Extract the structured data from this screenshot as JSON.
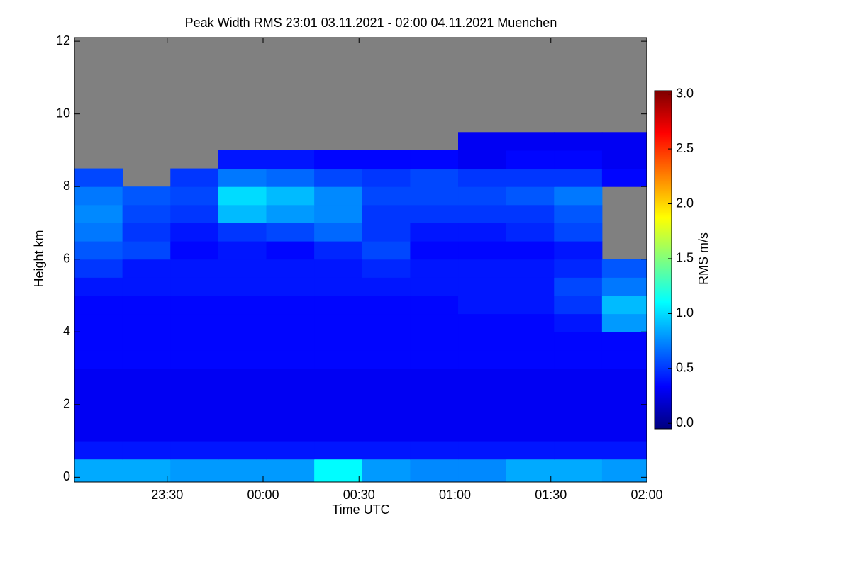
{
  "chart_data": {
    "type": "heatmap",
    "title": "Peak Width RMS   23:01 03.11.2021 - 02:00 04.11.2021 Muenchen",
    "x_label": "Time UTC",
    "y_label": "Height km",
    "colorbar_label": "RMS m/s",
    "xlim": [
      "23:01",
      "02:00"
    ],
    "xticks": [
      "23:30",
      "00:00",
      "00:30",
      "01:00",
      "01:30",
      "02:00"
    ],
    "ylim": [
      -0.13,
      12.1
    ],
    "yticks": [
      0,
      2,
      4,
      6,
      8,
      10,
      12
    ],
    "zlim": [
      -0.05,
      3.03
    ],
    "zticks": [
      {
        "value": 0,
        "label": "0.0"
      },
      0.5,
      {
        "value": 1,
        "label": "1.0"
      },
      1.5,
      {
        "value": 2,
        "label": "2.0"
      },
      2.5,
      {
        "value": 3,
        "label": "3.0"
      }
    ],
    "colors": [
      "#00007f",
      "#0000ff",
      "#007fff",
      "#00ffff",
      "#7fff7f",
      "#ffff00",
      "#ff7f00",
      "#ff0000",
      "#7f0000"
    ],
    "missing_color": "#808080",
    "x_bins": [
      "23:01",
      "23:16",
      "23:31",
      "23:46",
      "00:01",
      "00:16",
      "00:31",
      "00:46",
      "01:01",
      "01:16",
      "01:31",
      "01:46",
      "02:00"
    ],
    "y_bins": [
      0,
      0.5,
      1,
      1.5,
      2,
      2.5,
      3,
      3.5,
      4,
      4.5,
      5,
      5.5,
      6,
      6.5,
      7,
      7.5,
      8,
      8.5,
      9,
      9.5,
      10,
      10.5,
      11,
      11.5,
      12
    ],
    "z": [
      [
        0.85,
        0.85,
        0.8,
        0.8,
        0.8,
        1.1,
        0.8,
        0.75,
        0.75,
        0.85,
        0.85,
        0.8
      ],
      [
        0.4,
        0.4,
        0.4,
        0.4,
        0.4,
        0.4,
        0.4,
        0.4,
        0.4,
        0.4,
        0.4,
        0.4
      ],
      [
        0.3,
        0.3,
        0.3,
        0.3,
        0.3,
        0.3,
        0.3,
        0.3,
        0.3,
        0.3,
        0.3,
        0.3
      ],
      [
        0.3,
        0.3,
        0.3,
        0.3,
        0.3,
        0.3,
        0.3,
        0.3,
        0.3,
        0.3,
        0.3,
        0.3
      ],
      [
        0.3,
        0.3,
        0.3,
        0.3,
        0.3,
        0.3,
        0.3,
        0.3,
        0.3,
        0.3,
        0.3,
        0.3
      ],
      [
        0.3,
        0.3,
        0.3,
        0.3,
        0.3,
        0.3,
        0.3,
        0.3,
        0.3,
        0.3,
        0.3,
        0.3
      ],
      [
        0.35,
        0.35,
        0.35,
        0.35,
        0.35,
        0.35,
        0.35,
        0.35,
        0.35,
        0.35,
        0.35,
        0.35
      ],
      [
        0.35,
        0.35,
        0.35,
        0.35,
        0.35,
        0.35,
        0.35,
        0.35,
        0.35,
        0.35,
        0.35,
        0.35
      ],
      [
        0.35,
        0.35,
        0.35,
        0.35,
        0.35,
        0.35,
        0.35,
        0.35,
        0.35,
        0.35,
        0.4,
        0.8
      ],
      [
        0.35,
        0.35,
        0.35,
        0.35,
        0.35,
        0.35,
        0.35,
        0.35,
        0.4,
        0.4,
        0.5,
        0.9
      ],
      [
        0.4,
        0.4,
        0.4,
        0.4,
        0.4,
        0.4,
        0.4,
        0.4,
        0.4,
        0.4,
        0.55,
        0.7
      ],
      [
        0.5,
        0.4,
        0.4,
        0.4,
        0.4,
        0.4,
        0.45,
        0.4,
        0.4,
        0.4,
        0.45,
        0.6
      ],
      [
        0.6,
        0.55,
        0.35,
        0.4,
        0.35,
        0.45,
        0.55,
        0.35,
        0.35,
        0.35,
        0.4,
        null
      ],
      [
        0.7,
        0.5,
        0.4,
        0.5,
        0.55,
        0.65,
        0.5,
        0.4,
        0.4,
        0.45,
        0.55,
        null
      ],
      [
        0.75,
        0.55,
        0.5,
        0.9,
        0.8,
        0.75,
        0.5,
        0.5,
        0.5,
        0.5,
        0.6,
        null
      ],
      [
        0.7,
        0.6,
        0.55,
        1.0,
        0.9,
        0.75,
        0.55,
        0.55,
        0.55,
        0.6,
        0.7,
        null
      ],
      [
        0.55,
        null,
        0.5,
        0.7,
        0.65,
        0.55,
        0.5,
        0.55,
        0.5,
        0.5,
        0.5,
        0.35
      ],
      [
        null,
        null,
        null,
        0.4,
        0.4,
        0.35,
        0.35,
        0.35,
        0.3,
        0.35,
        0.35,
        0.3
      ],
      [
        null,
        null,
        null,
        null,
        null,
        null,
        null,
        null,
        0.3,
        0.3,
        0.3,
        0.3
      ],
      [
        null,
        null,
        null,
        null,
        null,
        null,
        null,
        null,
        null,
        null,
        null,
        null
      ],
      [
        null,
        null,
        null,
        null,
        null,
        null,
        null,
        null,
        null,
        null,
        null,
        null
      ],
      [
        null,
        null,
        null,
        null,
        null,
        null,
        null,
        null,
        null,
        null,
        null,
        null
      ],
      [
        null,
        null,
        null,
        null,
        null,
        null,
        null,
        null,
        null,
        null,
        null,
        null
      ],
      [
        null,
        null,
        null,
        null,
        null,
        null,
        null,
        null,
        null,
        null,
        null,
        null
      ]
    ]
  }
}
